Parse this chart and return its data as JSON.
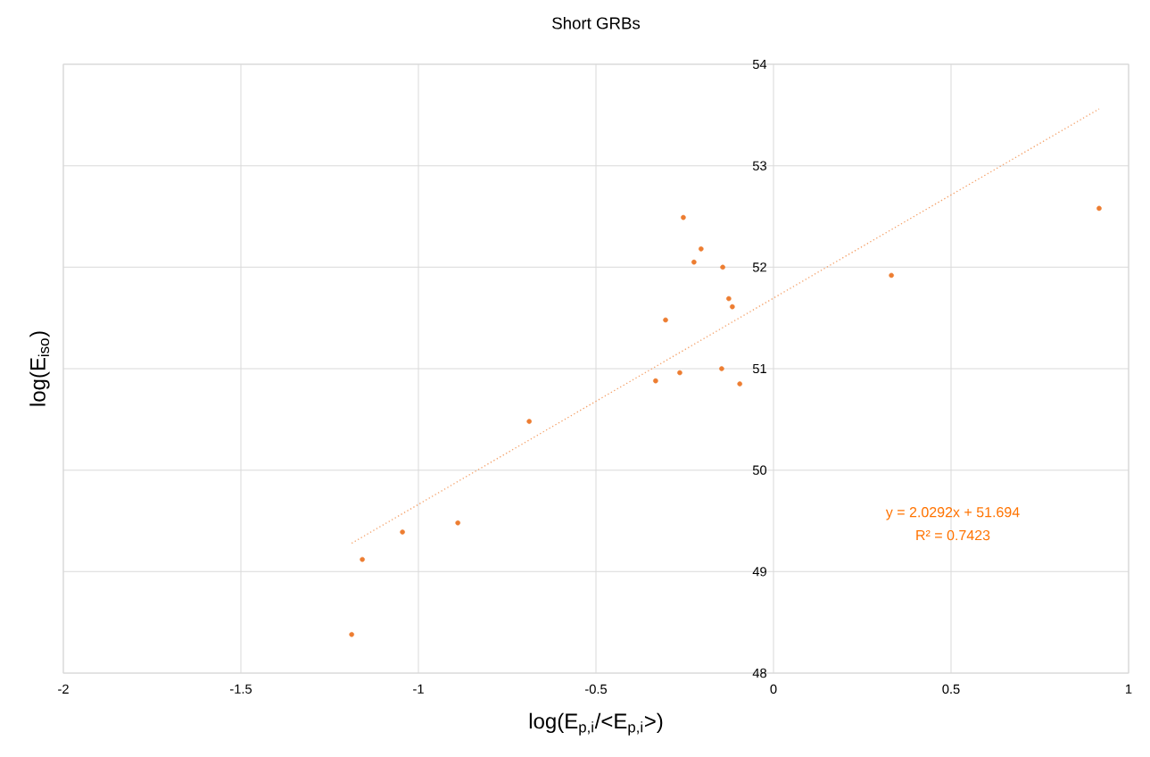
{
  "chart_data": {
    "type": "scatter",
    "title": "Short GRBs",
    "xlabel": "log(E$_{p,i}$/<E$_{p,i}$>)",
    "ylabel": "log(E$_{iso}$)",
    "series": [
      {
        "type": "scatter",
        "color": "#ed7d31",
        "marker": "circle",
        "x": [
          -1.188,
          -1.158,
          -1.045,
          -0.889,
          -0.688,
          -0.332,
          -0.304,
          -0.264,
          -0.254,
          -0.224,
          -0.204,
          -0.143,
          -0.146,
          -0.126,
          -0.116,
          -0.095,
          0.332,
          0.917
        ],
        "values": [
          48.38,
          49.12,
          49.39,
          49.48,
          50.48,
          50.88,
          51.48,
          50.96,
          52.49,
          52.05,
          52.18,
          52.0,
          51.0,
          51.69,
          51.61,
          50.85,
          51.92,
          52.58
        ]
      },
      {
        "type": "line",
        "color": "#f4a26b",
        "line_style": "dotted",
        "marker": "none",
        "x": [
          -1.188,
          0.917
        ],
        "values": [
          49.28,
          53.56
        ]
      }
    ],
    "annotations": [
      "y = 2.0292x + 51.694",
      "R² = 0.7423"
    ],
    "xlim": [
      -2,
      1
    ],
    "ylim": [
      48,
      54
    ],
    "xticks": [
      -2,
      -1.5,
      -1,
      -0.5,
      0,
      0.5,
      1
    ],
    "yticks": [
      48,
      49,
      50,
      51,
      52,
      53,
      54
    ],
    "grid": true
  }
}
